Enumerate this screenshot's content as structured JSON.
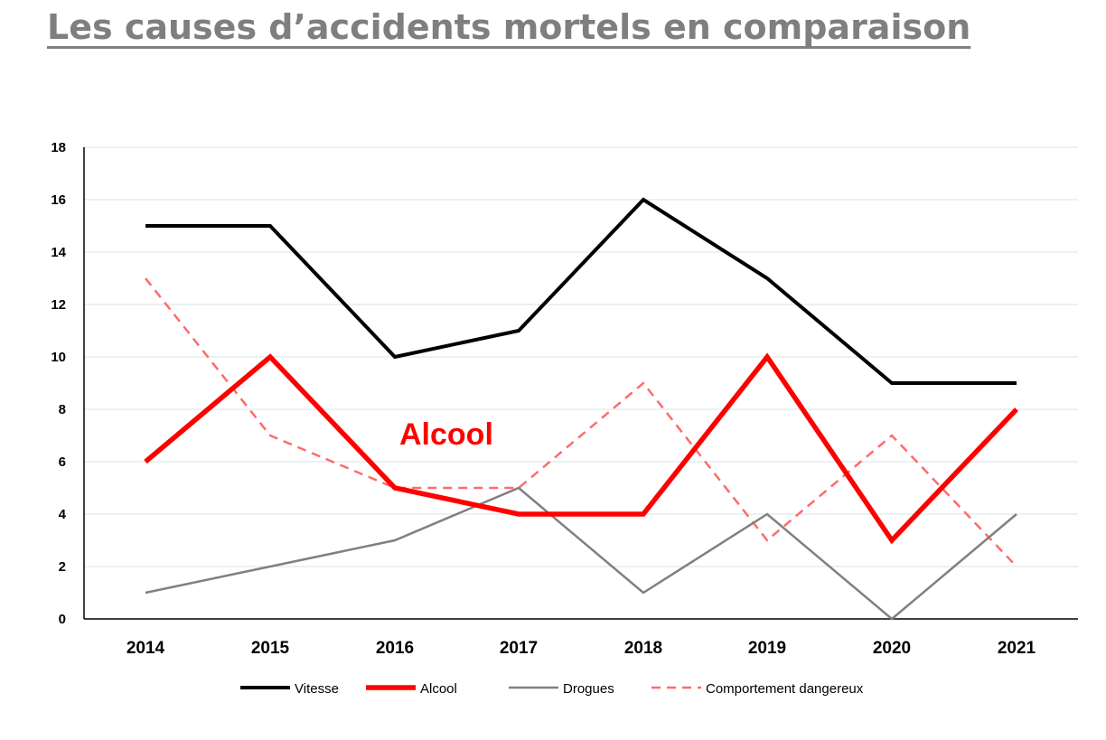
{
  "title": "Les causes d’accidents mortels en comparaison",
  "chart_data": {
    "type": "line",
    "title": "Les causes d’accidents mortels en comparaison",
    "xlabel": "",
    "ylabel": "",
    "categories": [
      "2014",
      "2015",
      "2016",
      "2017",
      "2018",
      "2019",
      "2020",
      "2021"
    ],
    "ylim": [
      0,
      18
    ],
    "yticks": [
      0,
      2,
      4,
      6,
      8,
      10,
      12,
      14,
      16,
      18
    ],
    "grid": true,
    "legend_position": "bottom",
    "series": [
      {
        "name": "Vitesse",
        "values": [
          15,
          15,
          10,
          11,
          16,
          13,
          9,
          9
        ],
        "color": "#000000",
        "style": "solid"
      },
      {
        "name": "Alcool",
        "values": [
          6,
          10,
          5,
          4,
          4,
          10,
          3,
          8
        ],
        "color": "#ff0000",
        "style": "solid"
      },
      {
        "name": "Drogues",
        "values": [
          1,
          2,
          3,
          5,
          1,
          4,
          0,
          4
        ],
        "color": "#808080",
        "style": "solid"
      },
      {
        "name": "Comportement dangereux",
        "values": [
          13,
          7,
          5,
          5,
          9,
          3,
          7,
          2
        ],
        "color": "#ff6b6b",
        "style": "dashed"
      }
    ],
    "annotations": [
      {
        "text": "Alcool",
        "x": "2016",
        "y": 7,
        "color": "#ff0000"
      }
    ]
  }
}
